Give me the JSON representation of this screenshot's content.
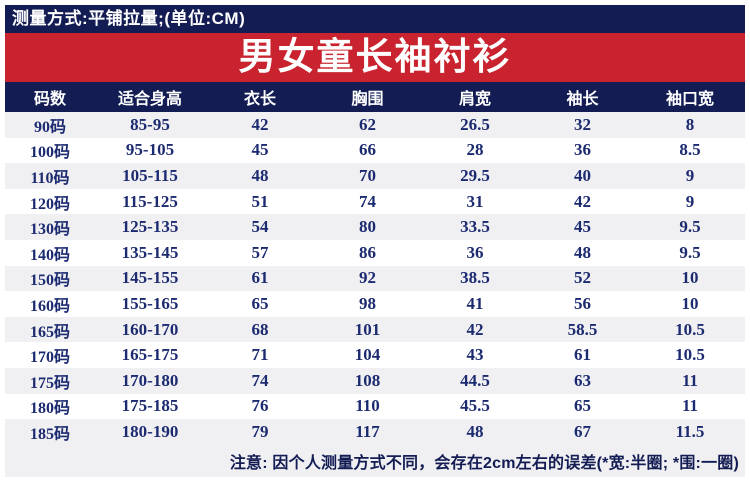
{
  "meta_bar": {
    "text": "测量方式:平铺拉量;(单位:CM)"
  },
  "title": "男女童长袖衬衫",
  "chart_data": {
    "type": "table",
    "title": "男女童长袖衬衫",
    "unit": "CM",
    "measure_method": "平铺拉量",
    "headers": [
      "码数",
      "适合身高",
      "衣长",
      "胸围",
      "肩宽",
      "袖长",
      "袖口宽"
    ],
    "rows": [
      [
        "90码",
        "85-95",
        "42",
        "62",
        "26.5",
        "32",
        "8"
      ],
      [
        "100码",
        "95-105",
        "45",
        "66",
        "28",
        "36",
        "8.5"
      ],
      [
        "110码",
        "105-115",
        "48",
        "70",
        "29.5",
        "40",
        "9"
      ],
      [
        "120码",
        "115-125",
        "51",
        "74",
        "31",
        "42",
        "9"
      ],
      [
        "130码",
        "125-135",
        "54",
        "80",
        "33.5",
        "45",
        "9.5"
      ],
      [
        "140码",
        "135-145",
        "57",
        "86",
        "36",
        "48",
        "9.5"
      ],
      [
        "150码",
        "145-155",
        "61",
        "92",
        "38.5",
        "52",
        "10"
      ],
      [
        "160码",
        "155-165",
        "65",
        "98",
        "41",
        "56",
        "10"
      ],
      [
        "165码",
        "160-170",
        "68",
        "101",
        "42",
        "58.5",
        "10.5"
      ],
      [
        "170码",
        "165-175",
        "71",
        "104",
        "43",
        "61",
        "10.5"
      ],
      [
        "175码",
        "170-180",
        "74",
        "108",
        "44.5",
        "63",
        "11"
      ],
      [
        "180码",
        "175-185",
        "76",
        "110",
        "45.5",
        "65",
        "11"
      ],
      [
        "185码",
        "180-190",
        "79",
        "117",
        "48",
        "67",
        "11.5"
      ]
    ],
    "note": "注意: 因个人测量方式不同，会存在2cm左右的误差(*宽:半圈; *围:一圈)"
  },
  "colors": {
    "navy": "#131d54",
    "red": "#c8232e",
    "stripe": "#f0f0f3",
    "text_navy": "#1c2a70"
  }
}
